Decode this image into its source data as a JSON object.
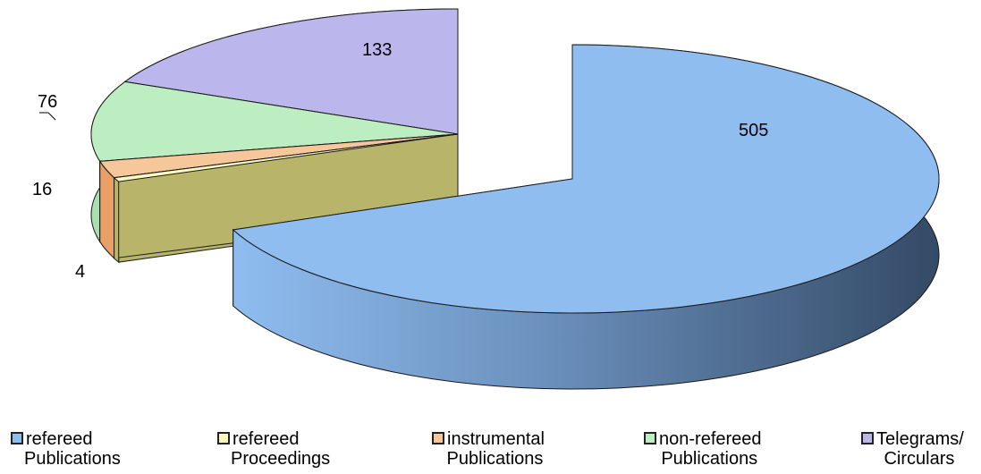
{
  "chart_data": {
    "type": "pie",
    "style": "3d-exploded",
    "title": "",
    "slices": [
      {
        "label": "refereed Publications",
        "legend_lines": [
          "refereed",
          "Publications"
        ],
        "value": 505,
        "value_label": "505",
        "color": "#8fbdf0",
        "side_color": "#4d6c91"
      },
      {
        "label": "refereed Proceedings",
        "legend_lines": [
          "refereed",
          "Proceedings"
        ],
        "value": 4,
        "value_label": "4",
        "color": "#fbf8c0",
        "side_color": "#b8b56a"
      },
      {
        "label": "instrumental Publications",
        "legend_lines": [
          "instrumental",
          "Publications"
        ],
        "value": 16,
        "value_label": "16",
        "color": "#f6c79b",
        "side_color": "#e8a066"
      },
      {
        "label": "non-refereed Publications",
        "legend_lines": [
          "non-refereed",
          "Publications"
        ],
        "value": 76,
        "value_label": "76",
        "color": "#bdeec1",
        "side_color": "#a9dfae"
      },
      {
        "label": "Telegrams/ Circulars",
        "legend_lines": [
          "Telegrams/",
          "Circulars"
        ],
        "value": 133,
        "value_label": "133",
        "color": "#bbb6ec",
        "side_color": "#4e4c6c"
      }
    ],
    "legend_position": "bottom"
  }
}
